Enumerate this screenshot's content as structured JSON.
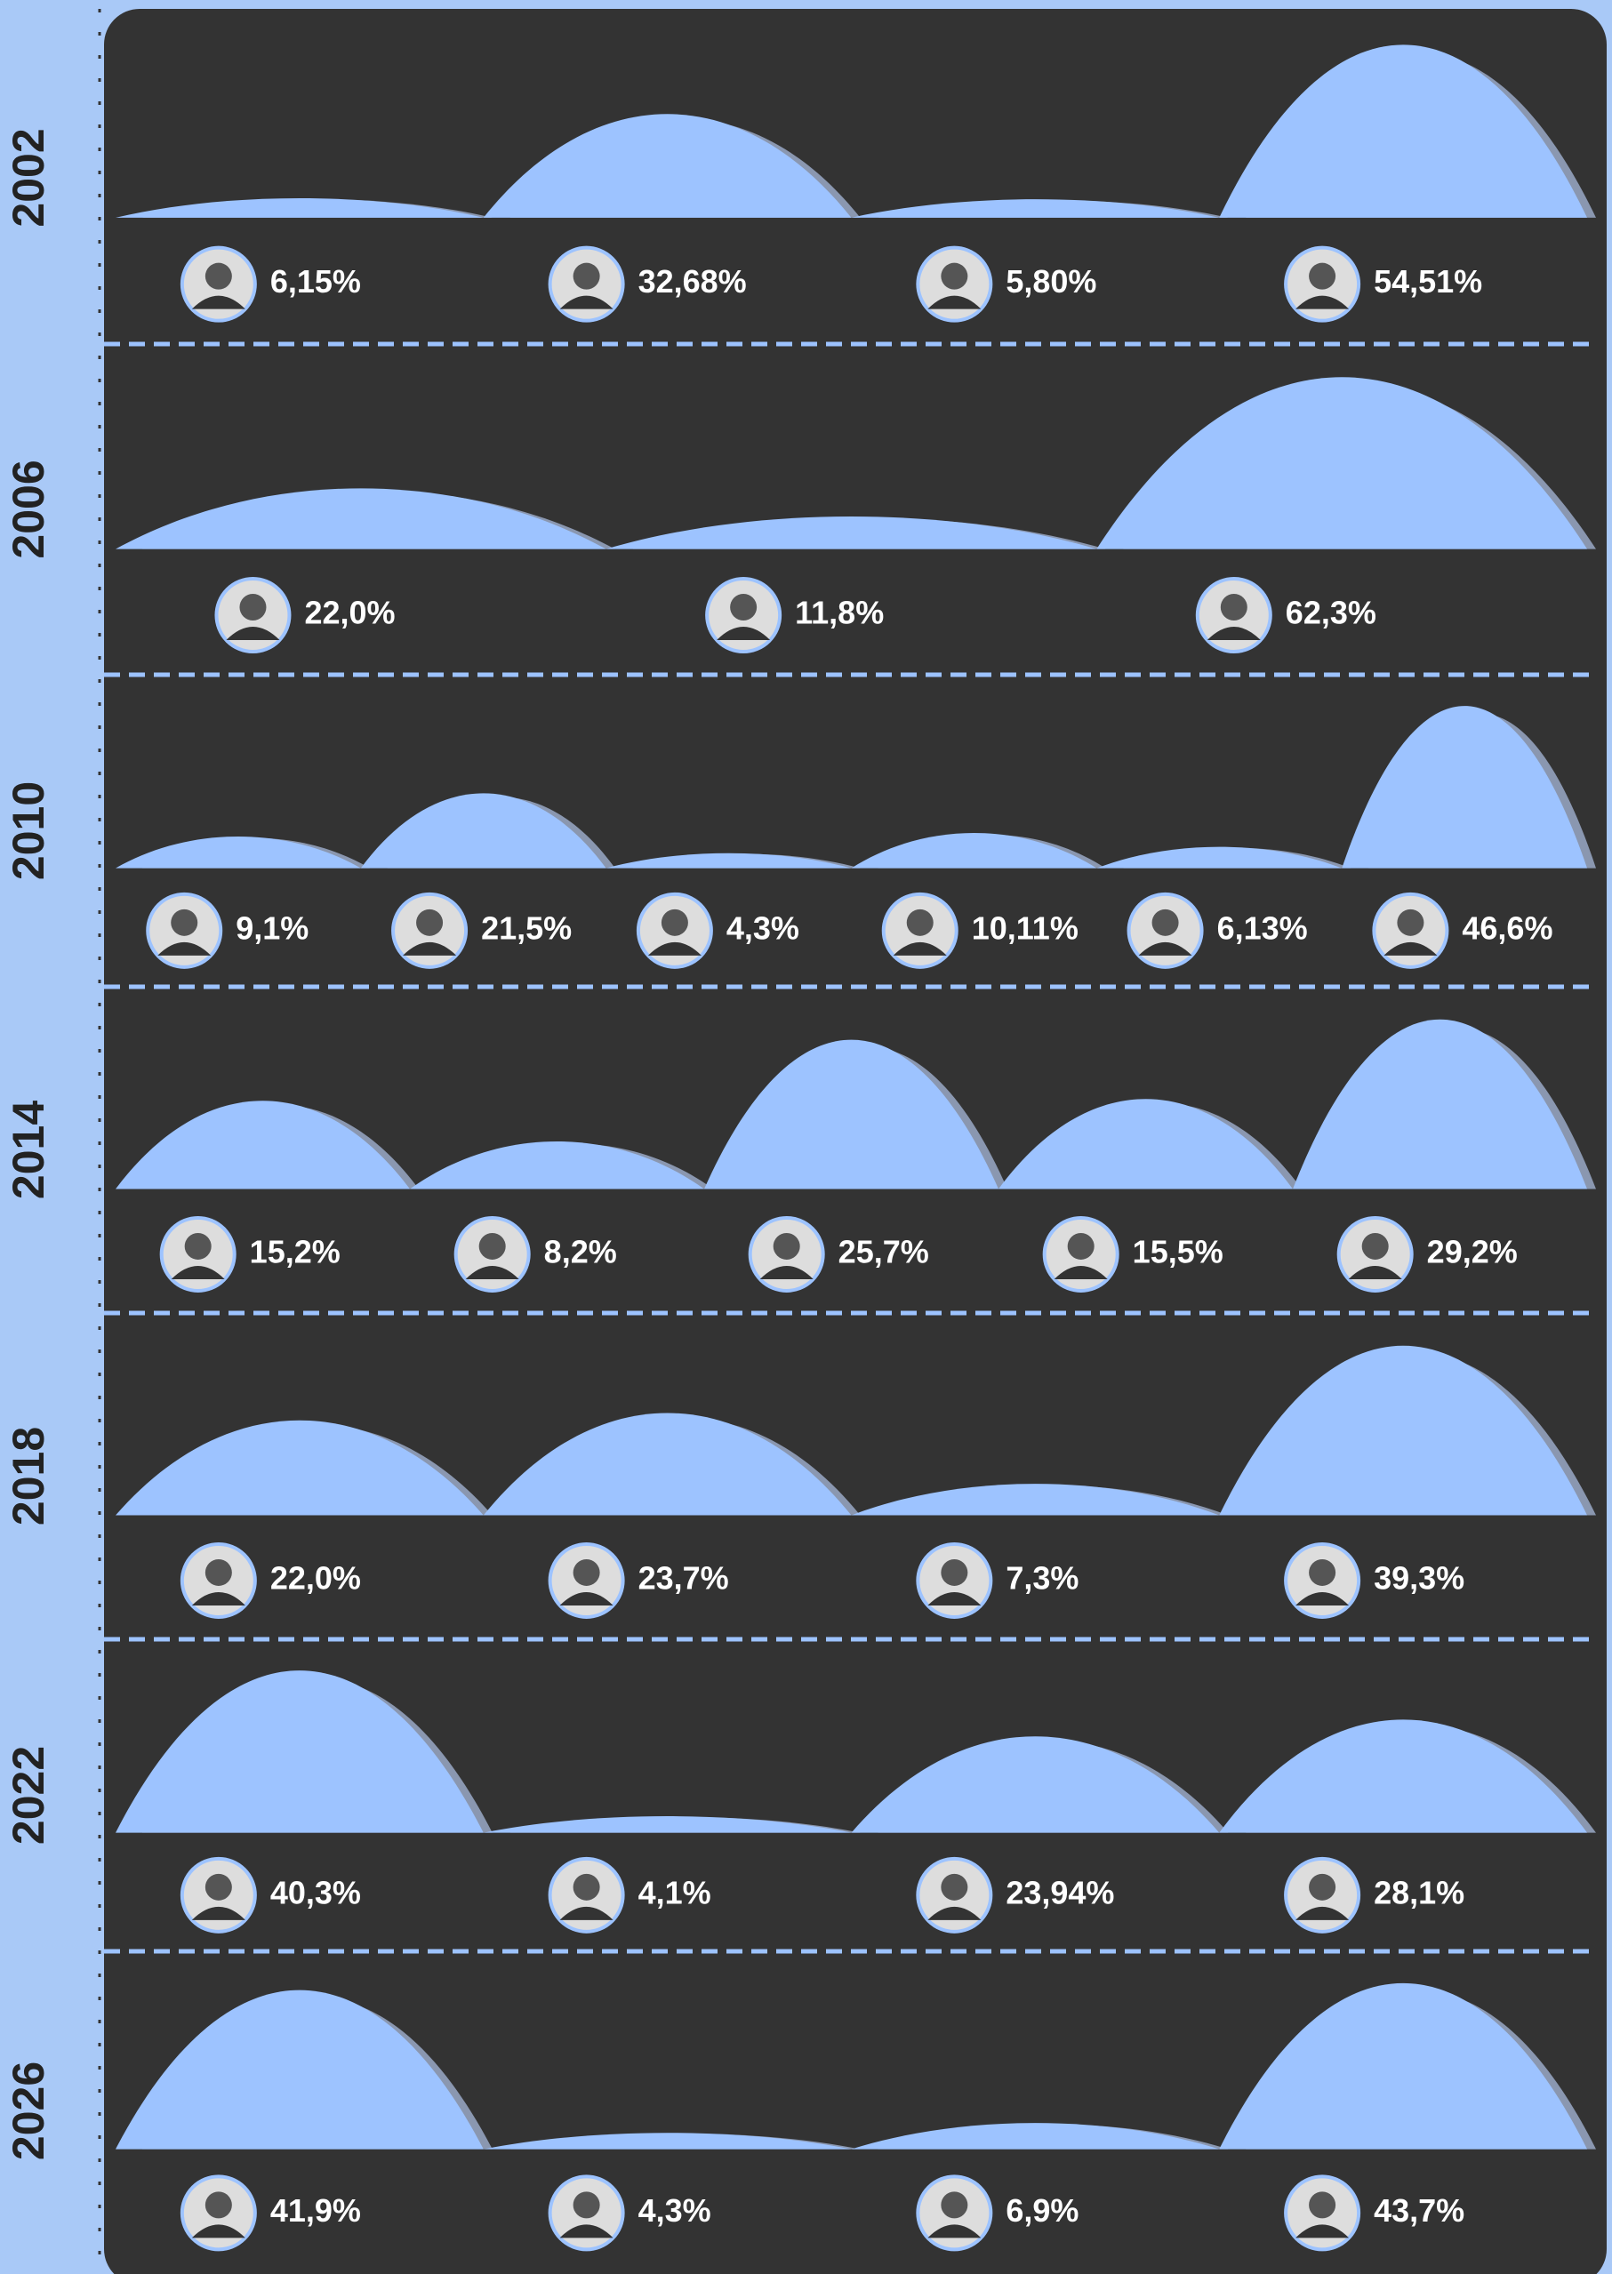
{
  "chart_data": [
    {
      "type": "hump",
      "title": "2002",
      "color": "#9dc3ff",
      "values": [
        6.15,
        32.68,
        5.8,
        54.51
      ],
      "value_labels": [
        "6,15%",
        "32,68%",
        "5,80%",
        "54,51%"
      ]
    },
    {
      "type": "hump",
      "title": "2006",
      "color": "#9dc3ff",
      "values": [
        22.0,
        11.8,
        62.3
      ],
      "value_labels": [
        "22,0%",
        "11,8%",
        "62,3%"
      ]
    },
    {
      "type": "hump",
      "title": "2010",
      "color": "#9dc3ff",
      "values": [
        9.1,
        21.5,
        4.3,
        10.11,
        6.13,
        46.6
      ],
      "value_labels": [
        "9,1%",
        "21,5%",
        "4,3%",
        "10,11%",
        "6,13%",
        "46,6%"
      ]
    },
    {
      "type": "hump",
      "title": "2014",
      "color": "#9dc3ff",
      "values": [
        15.2,
        8.2,
        25.7,
        15.5,
        29.2
      ],
      "value_labels": [
        "15,2%",
        "8,2%",
        "25,7%",
        "15,5%",
        "29,2%"
      ]
    },
    {
      "type": "hump",
      "title": "2018",
      "color": "#9dc3ff",
      "values": [
        22.0,
        23.7,
        7.3,
        39.3
      ],
      "value_labels": [
        "22,0%",
        "23,7%",
        "7,3%",
        "39,3%"
      ]
    },
    {
      "type": "hump",
      "title": "2022",
      "color": "#9dc3ff",
      "values": [
        40.3,
        4.1,
        23.94,
        28.1
      ],
      "value_labels": [
        "40,3%",
        "4,1%",
        "23,94%",
        "28,1%"
      ]
    },
    {
      "type": "hump",
      "title": "2026",
      "color": "#9dc3ff",
      "values": [
        41.9,
        4.3,
        6.9,
        43.7
      ],
      "value_labels": [
        "41,9%",
        "4,3%",
        "6,9%",
        "43,7%"
      ]
    }
  ]
}
